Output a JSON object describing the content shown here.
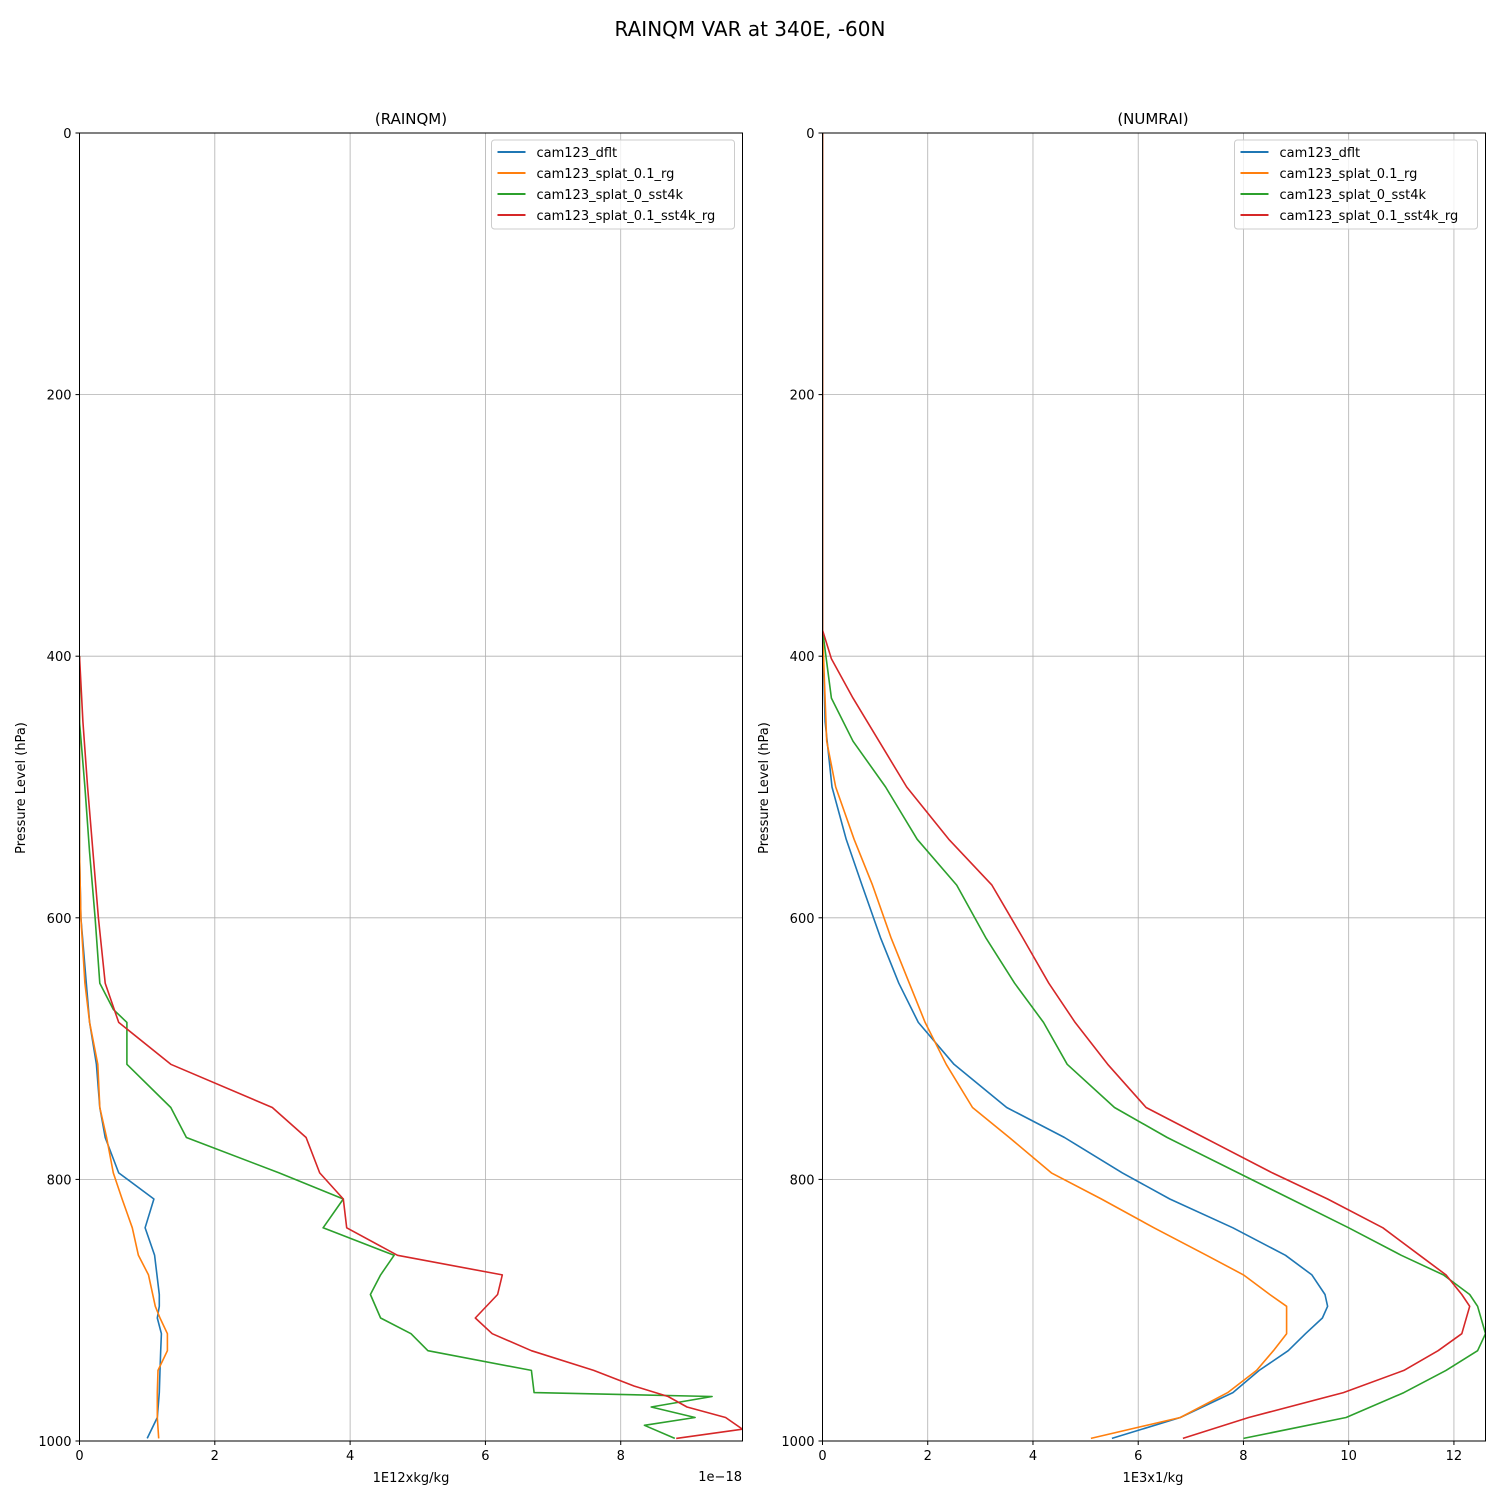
{
  "figure": {
    "title": "RAINQM VAR at 340E, -60N"
  },
  "colors": {
    "cam123_dflt": "#1f77b4",
    "cam123_splat_0.1_rg": "#ff7f0e",
    "cam123_splat_0_sst4k": "#2ca02c",
    "cam123_splat_0.1_sst4k_rg": "#d62728"
  },
  "chart_data": [
    {
      "type": "line",
      "title": "(RAINQM)",
      "xlabel": "1E12xkg/kg",
      "ylabel": "Pressure Level (hPa)",
      "x_offset_label": "1e−18",
      "xlim": [
        0,
        9.8
      ],
      "ylim": [
        1000,
        0
      ],
      "y_inverted": true,
      "grid": true,
      "legend_position": "top-right",
      "xticks": [
        0,
        2,
        4,
        6,
        8
      ],
      "xtick_labels": [
        "0",
        "2",
        "4",
        "6",
        "8"
      ],
      "yticks": [
        0,
        200,
        400,
        600,
        800,
        1000
      ],
      "ytick_labels": [
        "0",
        "200",
        "400",
        "600",
        "800",
        "1000"
      ],
      "series": [
        {
          "name": "cam123_dflt",
          "points": [
            [
              0,
              400
            ],
            [
              0,
              450
            ],
            [
              0,
              500
            ],
            [
              0,
              550
            ],
            [
              0.02,
              600
            ],
            [
              0.1,
              650
            ],
            [
              0.15,
              680
            ],
            [
              0.25,
              712
            ],
            [
              0.3,
              745
            ],
            [
              0.38,
              768
            ],
            [
              0.58,
              795
            ],
            [
              1.1,
              815
            ],
            [
              0.97,
              837
            ],
            [
              1.11,
              858
            ],
            [
              1.18,
              888
            ],
            [
              1.18,
              897
            ],
            [
              1.15,
              906
            ],
            [
              1.21,
              918
            ],
            [
              1.2,
              931
            ],
            [
              1.19,
              946
            ],
            [
              1.18,
              963
            ],
            [
              1.15,
              982
            ],
            [
              1.0,
              998
            ]
          ]
        },
        {
          "name": "cam123_splat_0.1_rg",
          "points": [
            [
              0,
              400
            ],
            [
              0,
              450
            ],
            [
              0,
              500
            ],
            [
              0,
              550
            ],
            [
              0.02,
              600
            ],
            [
              0.08,
              650
            ],
            [
              0.15,
              680
            ],
            [
              0.27,
              712
            ],
            [
              0.3,
              745
            ],
            [
              0.4,
              768
            ],
            [
              0.5,
              795
            ],
            [
              0.63,
              815
            ],
            [
              0.78,
              837
            ],
            [
              0.87,
              858
            ],
            [
              1.02,
              873
            ],
            [
              1.12,
              897
            ],
            [
              1.19,
              906
            ],
            [
              1.3,
              918
            ],
            [
              1.3,
              931
            ],
            [
              1.16,
              946
            ],
            [
              1.15,
              963
            ],
            [
              1.15,
              982
            ],
            [
              1.17,
              998
            ]
          ]
        },
        {
          "name": "cam123_splat_0_sst4k",
          "points": [
            [
              0,
              400
            ],
            [
              0,
              450
            ],
            [
              0.08,
              500
            ],
            [
              0.15,
              550
            ],
            [
              0.23,
              600
            ],
            [
              0.3,
              650
            ],
            [
              0.5,
              670
            ],
            [
              0.7,
              680
            ],
            [
              0.7,
              712
            ],
            [
              1.35,
              745
            ],
            [
              1.58,
              768
            ],
            [
              2.95,
              795
            ],
            [
              3.9,
              815
            ],
            [
              3.6,
              837
            ],
            [
              4.65,
              858
            ],
            [
              4.45,
              873
            ],
            [
              4.3,
              888
            ],
            [
              4.45,
              906
            ],
            [
              4.9,
              918
            ],
            [
              5.15,
              931
            ],
            [
              6.68,
              946
            ],
            [
              6.72,
              963
            ],
            [
              9.35,
              966
            ],
            [
              8.45,
              974
            ],
            [
              9.1,
              982
            ],
            [
              8.35,
              988
            ],
            [
              8.8,
              998
            ]
          ]
        },
        {
          "name": "cam123_splat_0.1_sst4k_rg",
          "points": [
            [
              0,
              400
            ],
            [
              0.05,
              450
            ],
            [
              0.12,
              500
            ],
            [
              0.2,
              550
            ],
            [
              0.28,
              600
            ],
            [
              0.38,
              650
            ],
            [
              0.58,
              680
            ],
            [
              1.35,
              712
            ],
            [
              2.85,
              745
            ],
            [
              3.35,
              768
            ],
            [
              3.55,
              795
            ],
            [
              3.9,
              815
            ],
            [
              3.95,
              837
            ],
            [
              4.7,
              858
            ],
            [
              6.25,
              873
            ],
            [
              6.18,
              888
            ],
            [
              5.85,
              906
            ],
            [
              6.1,
              918
            ],
            [
              6.68,
              931
            ],
            [
              7.6,
              946
            ],
            [
              8.2,
              958
            ],
            [
              8.7,
              966
            ],
            [
              8.98,
              974
            ],
            [
              9.55,
              982
            ],
            [
              9.8,
              991
            ],
            [
              8.82,
              998
            ]
          ]
        }
      ]
    },
    {
      "type": "line",
      "title": "(NUMRAI)",
      "xlabel": "1E3x1/kg",
      "ylabel": "Pressure Level (hPa)",
      "xlim": [
        0,
        12.6
      ],
      "ylim": [
        1000,
        0
      ],
      "y_inverted": true,
      "grid": true,
      "legend_position": "top-right",
      "xticks": [
        0,
        2,
        4,
        6,
        8,
        10,
        12
      ],
      "xtick_labels": [
        "0",
        "2",
        "4",
        "6",
        "8",
        "10",
        "12"
      ],
      "yticks": [
        0,
        200,
        400,
        600,
        800,
        1000
      ],
      "ytick_labels": [
        "0",
        "200",
        "400",
        "600",
        "800",
        "1000"
      ],
      "series": [
        {
          "name": "cam123_dflt",
          "points": [
            [
              0,
              0
            ],
            [
              0,
              100
            ],
            [
              0,
              200
            ],
            [
              0,
              300
            ],
            [
              0,
              380
            ],
            [
              0.05,
              450
            ],
            [
              0.18,
              500
            ],
            [
              0.45,
              540
            ],
            [
              0.75,
              575
            ],
            [
              1.1,
              615
            ],
            [
              1.45,
              650
            ],
            [
              1.82,
              680
            ],
            [
              2.5,
              712
            ],
            [
              3.5,
              745
            ],
            [
              4.6,
              768
            ],
            [
              5.7,
              795
            ],
            [
              6.6,
              815
            ],
            [
              7.8,
              837
            ],
            [
              8.8,
              858
            ],
            [
              9.3,
              873
            ],
            [
              9.55,
              888
            ],
            [
              9.6,
              897
            ],
            [
              9.5,
              906
            ],
            [
              9.18,
              918
            ],
            [
              8.85,
              931
            ],
            [
              8.3,
              946
            ],
            [
              7.8,
              963
            ],
            [
              6.8,
              982
            ],
            [
              5.5,
              998
            ]
          ]
        },
        {
          "name": "cam123_splat_0.1_rg",
          "points": [
            [
              0,
              0
            ],
            [
              0,
              100
            ],
            [
              0,
              200
            ],
            [
              0,
              300
            ],
            [
              0,
              380
            ],
            [
              0.08,
              465
            ],
            [
              0.25,
              500
            ],
            [
              0.6,
              540
            ],
            [
              0.95,
              575
            ],
            [
              1.3,
              615
            ],
            [
              1.65,
              650
            ],
            [
              1.95,
              680
            ],
            [
              2.35,
              712
            ],
            [
              2.85,
              745
            ],
            [
              3.55,
              768
            ],
            [
              4.35,
              795
            ],
            [
              5.3,
              815
            ],
            [
              6.3,
              837
            ],
            [
              7.3,
              858
            ],
            [
              8.0,
              873
            ],
            [
              8.5,
              888
            ],
            [
              8.82,
              897
            ],
            [
              8.82,
              918
            ],
            [
              8.57,
              931
            ],
            [
              8.25,
              946
            ],
            [
              7.7,
              963
            ],
            [
              6.8,
              982
            ],
            [
              5.1,
              998
            ]
          ]
        },
        {
          "name": "cam123_splat_0_sst4k",
          "points": [
            [
              0,
              0
            ],
            [
              0,
              100
            ],
            [
              0,
              200
            ],
            [
              0,
              300
            ],
            [
              0,
              380
            ],
            [
              0.17,
              432
            ],
            [
              0.58,
              465
            ],
            [
              1.2,
              500
            ],
            [
              1.8,
              540
            ],
            [
              2.55,
              575
            ],
            [
              3.1,
              615
            ],
            [
              3.65,
              650
            ],
            [
              4.2,
              680
            ],
            [
              4.65,
              712
            ],
            [
              5.55,
              745
            ],
            [
              6.55,
              768
            ],
            [
              7.9,
              795
            ],
            [
              8.9,
              815
            ],
            [
              10.0,
              837
            ],
            [
              11.0,
              858
            ],
            [
              11.8,
              873
            ],
            [
              12.3,
              888
            ],
            [
              12.45,
              897
            ],
            [
              12.6,
              918
            ],
            [
              12.45,
              931
            ],
            [
              11.85,
              946
            ],
            [
              11.05,
              963
            ],
            [
              9.95,
              982
            ],
            [
              8.0,
              998
            ]
          ]
        },
        {
          "name": "cam123_splat_0.1_sst4k_rg",
          "points": [
            [
              0,
              0
            ],
            [
              0,
              100
            ],
            [
              0,
              200
            ],
            [
              0,
              300
            ],
            [
              0,
              380
            ],
            [
              0.17,
              402
            ],
            [
              0.58,
              432
            ],
            [
              1.6,
              500
            ],
            [
              2.4,
              540
            ],
            [
              3.22,
              575
            ],
            [
              3.8,
              615
            ],
            [
              4.3,
              650
            ],
            [
              4.8,
              680
            ],
            [
              5.42,
              712
            ],
            [
              6.15,
              745
            ],
            [
              7.25,
              768
            ],
            [
              8.55,
              795
            ],
            [
              9.6,
              815
            ],
            [
              10.65,
              837
            ],
            [
              11.35,
              858
            ],
            [
              11.85,
              873
            ],
            [
              12.15,
              888
            ],
            [
              12.3,
              897
            ],
            [
              12.15,
              918
            ],
            [
              11.7,
              931
            ],
            [
              11.05,
              946
            ],
            [
              9.9,
              963
            ],
            [
              8.1,
              982
            ],
            [
              6.85,
              998
            ]
          ]
        }
      ]
    }
  ]
}
